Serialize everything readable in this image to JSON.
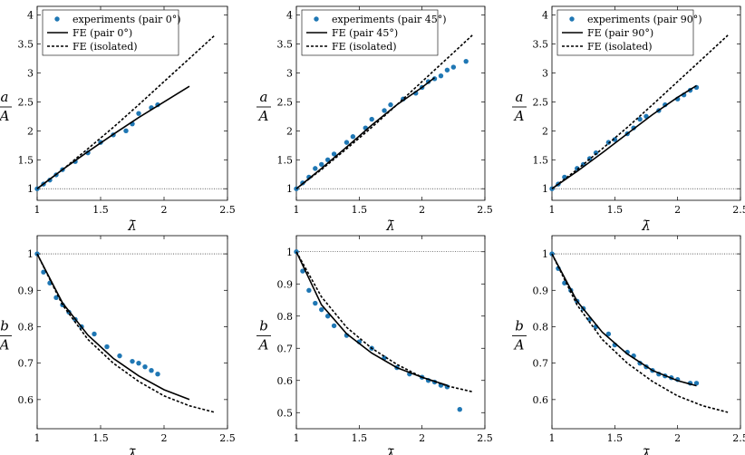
{
  "colors": {
    "experiment": "#1f77b4",
    "fe": "#000000"
  },
  "chart_data": [
    {
      "type": "scatter",
      "panel": "top-left",
      "xlabel": "λ̄",
      "ylabel_num": "a",
      "ylabel_den": "A",
      "xlim": [
        1,
        2.5
      ],
      "ylim": [
        0.8,
        4.15
      ],
      "xticks": [
        1,
        1.5,
        2,
        2.5
      ],
      "xtick_labels": [
        "1",
        "1.5",
        "2",
        "2.5"
      ],
      "yticks": [
        1,
        1.5,
        2,
        2.5,
        3,
        3.5,
        4
      ],
      "ytick_labels": [
        "1",
        "1.5",
        "2",
        "2.5",
        "3",
        "3.5",
        "4"
      ],
      "reference_y": 1,
      "legend": [
        "experiments (pair 0°)",
        "FE (pair 0°)",
        "FE (isolated)"
      ],
      "legend_position": "top-left",
      "series": [
        {
          "name": "experiments (pair 0°)",
          "kind": "points",
          "x": [
            1.0,
            1.05,
            1.1,
            1.15,
            1.2,
            1.3,
            1.4,
            1.5,
            1.6,
            1.7,
            1.75,
            1.8,
            1.9,
            1.95
          ],
          "y": [
            1.0,
            1.08,
            1.15,
            1.24,
            1.33,
            1.47,
            1.62,
            1.8,
            1.93,
            2.0,
            2.12,
            2.3,
            2.4,
            2.45
          ]
        },
        {
          "name": "FE (pair 0°)",
          "kind": "solid",
          "x": [
            1.0,
            1.2,
            1.4,
            1.6,
            1.8,
            2.0,
            2.2
          ],
          "y": [
            1.0,
            1.33,
            1.64,
            1.94,
            2.23,
            2.5,
            2.77
          ]
        },
        {
          "name": "FE (isolated)",
          "kind": "dashed",
          "x": [
            1.0,
            1.2,
            1.4,
            1.6,
            1.8,
            2.0,
            2.2,
            2.4
          ],
          "y": [
            1.0,
            1.33,
            1.69,
            2.06,
            2.45,
            2.85,
            3.25,
            3.65
          ]
        }
      ]
    },
    {
      "type": "scatter",
      "panel": "top-middle",
      "xlabel": "λ̄",
      "ylabel_num": "a",
      "ylabel_den": "A",
      "xlim": [
        1,
        2.5
      ],
      "ylim": [
        0.8,
        4.15
      ],
      "xticks": [
        1,
        1.5,
        2,
        2.5
      ],
      "xtick_labels": [
        "1",
        "1.5",
        "2",
        "2.5"
      ],
      "yticks": [
        1,
        1.5,
        2,
        2.5,
        3,
        3.5,
        4
      ],
      "ytick_labels": [
        "1",
        "1.5",
        "2",
        "2.5",
        "3",
        "3.5",
        "4"
      ],
      "reference_y": 1,
      "legend": [
        "experiments (pair 45°)",
        "FE (pair 45°)",
        "FE (isolated)"
      ],
      "legend_position": "top-left",
      "series": [
        {
          "name": "experiments (pair 45°)",
          "kind": "points",
          "x": [
            1.0,
            1.05,
            1.1,
            1.15,
            1.2,
            1.25,
            1.3,
            1.4,
            1.45,
            1.55,
            1.6,
            1.7,
            1.75,
            1.85,
            1.95,
            2.0,
            2.05,
            2.1,
            2.15,
            2.2,
            2.25,
            2.35
          ],
          "y": [
            1.0,
            1.1,
            1.2,
            1.35,
            1.42,
            1.5,
            1.6,
            1.8,
            1.9,
            2.05,
            2.2,
            2.35,
            2.45,
            2.55,
            2.65,
            2.75,
            2.85,
            2.9,
            2.95,
            3.05,
            3.1,
            3.2
          ]
        },
        {
          "name": "FE (pair 45°)",
          "kind": "solid",
          "x": [
            1.0,
            1.2,
            1.4,
            1.6,
            1.8,
            2.0,
            2.1
          ],
          "y": [
            1.0,
            1.35,
            1.72,
            2.1,
            2.45,
            2.75,
            2.92
          ]
        },
        {
          "name": "FE (isolated)",
          "kind": "dashed",
          "x": [
            1.0,
            1.2,
            1.4,
            1.6,
            1.8,
            2.0,
            2.2,
            2.4
          ],
          "y": [
            1.0,
            1.33,
            1.69,
            2.06,
            2.45,
            2.85,
            3.25,
            3.65
          ]
        }
      ]
    },
    {
      "type": "scatter",
      "panel": "top-right",
      "xlabel": "λ̄",
      "ylabel_num": "a",
      "ylabel_den": "A",
      "xlim": [
        1,
        2.5
      ],
      "ylim": [
        0.8,
        4.15
      ],
      "xticks": [
        1,
        1.5,
        2,
        2.5
      ],
      "xtick_labels": [
        "1",
        "1.5",
        "2",
        "2.5"
      ],
      "yticks": [
        1,
        1.5,
        2,
        2.5,
        3,
        3.5,
        4
      ],
      "ytick_labels": [
        "1",
        "1.5",
        "2",
        "2.5",
        "3",
        "3.5",
        "4"
      ],
      "reference_y": 1,
      "legend": [
        "experiments (pair 90°)",
        "FE (pair 90°)",
        "FE (isolated)"
      ],
      "legend_position": "top-left",
      "series": [
        {
          "name": "experiments (pair 90°)",
          "kind": "points",
          "x": [
            1.0,
            1.05,
            1.1,
            1.2,
            1.25,
            1.3,
            1.35,
            1.45,
            1.5,
            1.6,
            1.65,
            1.7,
            1.75,
            1.85,
            1.9,
            2.0,
            2.05,
            2.1,
            2.15
          ],
          "y": [
            1.0,
            1.08,
            1.2,
            1.35,
            1.42,
            1.52,
            1.62,
            1.8,
            1.85,
            1.95,
            2.05,
            2.2,
            2.25,
            2.35,
            2.45,
            2.55,
            2.62,
            2.7,
            2.75
          ]
        },
        {
          "name": "FE (pair 90°)",
          "kind": "solid",
          "x": [
            1.0,
            1.2,
            1.4,
            1.6,
            1.8,
            2.0,
            2.15
          ],
          "y": [
            1.0,
            1.3,
            1.62,
            1.95,
            2.28,
            2.58,
            2.78
          ]
        },
        {
          "name": "FE (isolated)",
          "kind": "dashed",
          "x": [
            1.0,
            1.2,
            1.4,
            1.6,
            1.8,
            2.0,
            2.2,
            2.4
          ],
          "y": [
            1.0,
            1.33,
            1.69,
            2.06,
            2.45,
            2.85,
            3.25,
            3.65
          ]
        }
      ]
    },
    {
      "type": "scatter",
      "panel": "bottom-left",
      "xlabel": "λ̄",
      "ylabel_num": "b",
      "ylabel_den": "A",
      "xlim": [
        1,
        2.5
      ],
      "ylim": [
        0.52,
        1.05
      ],
      "xticks": [
        1,
        1.5,
        2,
        2.5
      ],
      "xtick_labels": [
        "1",
        "1.5",
        "2",
        "2.5"
      ],
      "yticks": [
        0.6,
        0.7,
        0.8,
        0.9,
        1
      ],
      "ytick_labels": [
        "0.6",
        "0.7",
        "0.8",
        "0.9",
        "1"
      ],
      "reference_y": 1,
      "series": [
        {
          "name": "experiments",
          "kind": "points",
          "x": [
            1.0,
            1.05,
            1.1,
            1.15,
            1.2,
            1.25,
            1.3,
            1.35,
            1.45,
            1.55,
            1.65,
            1.75,
            1.8,
            1.85,
            1.9,
            1.95
          ],
          "y": [
            1.0,
            0.95,
            0.92,
            0.88,
            0.86,
            0.84,
            0.82,
            0.8,
            0.78,
            0.745,
            0.72,
            0.705,
            0.7,
            0.69,
            0.68,
            0.67
          ]
        },
        {
          "name": "FE (pair 0°)",
          "kind": "solid",
          "x": [
            1.0,
            1.2,
            1.4,
            1.6,
            1.8,
            2.0,
            2.2
          ],
          "y": [
            1.0,
            0.865,
            0.777,
            0.713,
            0.665,
            0.627,
            0.6
          ]
        },
        {
          "name": "FE (isolated)",
          "kind": "dashed",
          "x": [
            1.0,
            1.2,
            1.4,
            1.6,
            1.8,
            2.0,
            2.2,
            2.4
          ],
          "y": [
            1.0,
            0.86,
            0.765,
            0.7,
            0.65,
            0.61,
            0.583,
            0.565
          ]
        }
      ]
    },
    {
      "type": "scatter",
      "panel": "bottom-middle",
      "xlabel": "λ̄",
      "ylabel_num": "b",
      "ylabel_den": "A",
      "xlim": [
        1,
        2.5
      ],
      "ylim": [
        0.45,
        1.05
      ],
      "xticks": [
        1,
        1.5,
        2,
        2.5
      ],
      "xtick_labels": [
        "1",
        "1.5",
        "2",
        "2.5"
      ],
      "yticks": [
        0.5,
        0.6,
        0.7,
        0.8,
        0.9,
        1
      ],
      "ytick_labels": [
        "0.5",
        "0.6",
        "0.7",
        "0.8",
        "0.9",
        "1"
      ],
      "reference_y": 1,
      "series": [
        {
          "name": "experiments",
          "kind": "points",
          "x": [
            1.0,
            1.05,
            1.1,
            1.15,
            1.2,
            1.25,
            1.3,
            1.4,
            1.5,
            1.6,
            1.7,
            1.8,
            1.9,
            2.0,
            2.05,
            2.1,
            2.15,
            2.2,
            2.3
          ],
          "y": [
            1.0,
            0.94,
            0.88,
            0.84,
            0.82,
            0.8,
            0.77,
            0.74,
            0.72,
            0.7,
            0.67,
            0.64,
            0.62,
            0.61,
            0.6,
            0.595,
            0.585,
            0.58,
            0.51
          ]
        },
        {
          "name": "FE (pair 45°)",
          "kind": "solid",
          "x": [
            1.0,
            1.2,
            1.4,
            1.6,
            1.8,
            2.0,
            2.2
          ],
          "y": [
            1.0,
            0.835,
            0.745,
            0.685,
            0.64,
            0.61,
            0.585
          ]
        },
        {
          "name": "FE (isolated)",
          "kind": "dashed",
          "x": [
            1.0,
            1.2,
            1.4,
            1.6,
            1.8,
            2.0,
            2.2,
            2.4
          ],
          "y": [
            1.0,
            0.86,
            0.765,
            0.7,
            0.65,
            0.61,
            0.583,
            0.565
          ]
        }
      ]
    },
    {
      "type": "scatter",
      "panel": "bottom-right",
      "xlabel": "λ̄",
      "ylabel_num": "b",
      "ylabel_den": "A",
      "xlim": [
        1,
        2.5
      ],
      "ylim": [
        0.52,
        1.05
      ],
      "xticks": [
        1,
        1.5,
        2,
        2.5
      ],
      "xtick_labels": [
        "1",
        "1.5",
        "2",
        "2.5"
      ],
      "yticks": [
        0.6,
        0.7,
        0.8,
        0.9,
        1
      ],
      "ytick_labels": [
        "0.6",
        "0.7",
        "0.8",
        "0.9",
        "1"
      ],
      "reference_y": 1,
      "series": [
        {
          "name": "experiments",
          "kind": "points",
          "x": [
            1.0,
            1.05,
            1.1,
            1.15,
            1.2,
            1.25,
            1.3,
            1.35,
            1.45,
            1.5,
            1.6,
            1.65,
            1.7,
            1.75,
            1.8,
            1.85,
            1.9,
            1.95,
            2.0,
            2.1,
            2.15
          ],
          "y": [
            1.0,
            0.96,
            0.92,
            0.9,
            0.87,
            0.85,
            0.82,
            0.8,
            0.78,
            0.75,
            0.73,
            0.72,
            0.7,
            0.69,
            0.68,
            0.67,
            0.665,
            0.66,
            0.655,
            0.645,
            0.645
          ]
        },
        {
          "name": "FE (pair 90°)",
          "kind": "solid",
          "x": [
            1.0,
            1.2,
            1.4,
            1.6,
            1.8,
            2.0,
            2.15
          ],
          "y": [
            1.0,
            0.87,
            0.785,
            0.725,
            0.68,
            0.652,
            0.638
          ]
        },
        {
          "name": "FE (isolated)",
          "kind": "dashed",
          "x": [
            1.0,
            1.2,
            1.4,
            1.6,
            1.8,
            2.0,
            2.2,
            2.4
          ],
          "y": [
            1.0,
            0.86,
            0.765,
            0.7,
            0.65,
            0.61,
            0.583,
            0.565
          ]
        }
      ]
    }
  ]
}
